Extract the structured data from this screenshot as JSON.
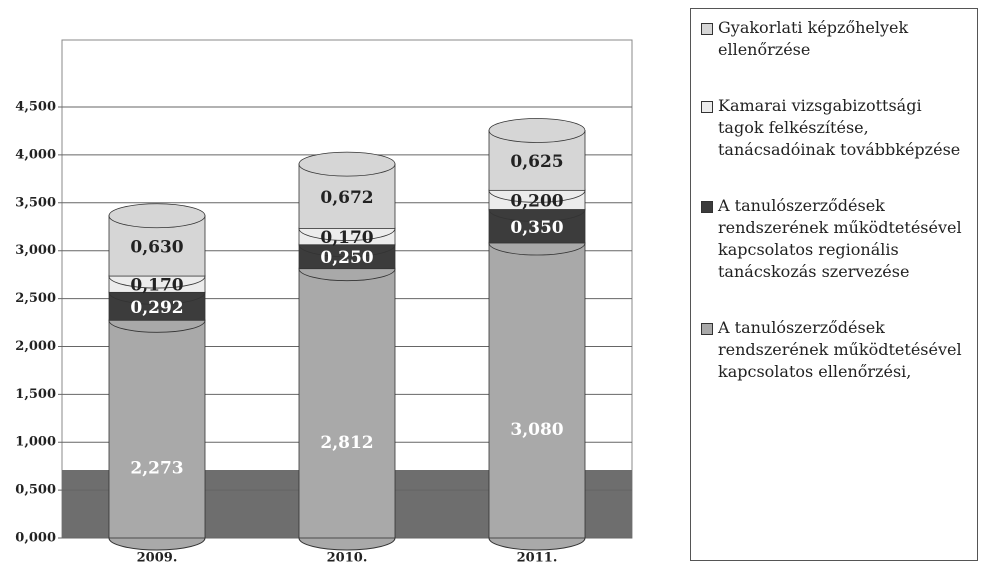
{
  "chart_data": {
    "type": "bar",
    "stacked": true,
    "categories": [
      "2009.",
      "2010.",
      "2011."
    ],
    "series": [
      {
        "name": "A tanulószerződések rendszerének működtetésével kapcsolatos ellenőrzési,",
        "color": "#a9a9a9",
        "values": [
          2.273,
          2.812,
          3.08
        ],
        "value_labels": [
          "2,273",
          "2,812",
          "3,080"
        ]
      },
      {
        "name": "A tanulószerződések rendszerének működtetésével kapcsolatos regionális tanácskozás szervezése",
        "color": "#3c3c3c",
        "values": [
          0.292,
          0.25,
          0.35
        ],
        "value_labels": [
          "0,292",
          "0,250",
          "0,350"
        ]
      },
      {
        "name": "Kamarai vizsgabizottsági tagok felkészítése, tanácsadóinak továbbképzése",
        "color": "#ececec",
        "values": [
          0.17,
          0.17,
          0.2
        ],
        "value_labels": [
          "0,170",
          "0,170",
          "0,200"
        ]
      },
      {
        "name": "Gyakorlati képzőhelyek ellenőrzése",
        "color": "#d6d6d6",
        "values": [
          0.63,
          0.672,
          0.625
        ],
        "value_labels": [
          "0,630",
          "0,672",
          "0,625"
        ]
      }
    ],
    "ylim": [
      0,
      5.2
    ],
    "yticks": [
      {
        "value": 0,
        "label": "0,000"
      },
      {
        "value": 0.5,
        "label": "0,500"
      },
      {
        "value": 1,
        "label": "1,000"
      },
      {
        "value": 1.5,
        "label": "1,500"
      },
      {
        "value": 2,
        "label": "2,000"
      },
      {
        "value": 2.5,
        "label": "2,500"
      },
      {
        "value": 3,
        "label": "3,000"
      },
      {
        "value": 3.5,
        "label": "3,500"
      },
      {
        "value": 4,
        "label": "4,000"
      },
      {
        "value": 4.5,
        "label": "4,500"
      }
    ],
    "grid": true
  }
}
